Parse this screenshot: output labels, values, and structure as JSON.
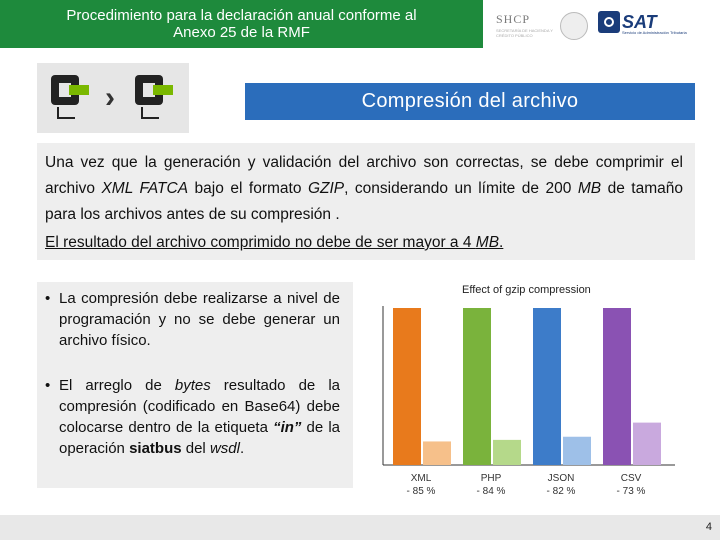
{
  "header": {
    "title_line1": "Procedimiento para la declaración anual conforme al",
    "title_line2": "Anexo 25 de la RMF"
  },
  "logos": {
    "shcp_text": "SHCP",
    "shcp_sub": "SECRETARÍA DE HACIENDA Y CRÉDITO PÚBLICO",
    "sat_text": "SAT",
    "sat_sub": "Servicio de Administración Tributaria"
  },
  "icons": {
    "left": "archive-icon",
    "arrow": "chevron-right-icon",
    "right": "compressed-archive-icon",
    "left_tab_color": "#7ab800",
    "right_tab_color": "#7ab800"
  },
  "section_title": "Compresión del archivo",
  "paragraph": {
    "s1": "Una vez que la generación y validación del archivo son correctas, se debe comprimir el archivo ",
    "s2": "XML FATCA",
    "s3": " bajo el formato ",
    "s4": "GZIP",
    "s5": ", considerando un límite de 200 ",
    "s6": "MB",
    "s7": " de tamaño para los archivos antes de su compresión .",
    "u1": "El resultado del archivo comprimido no debe de ser mayor a 4 ",
    "u2": "MB",
    "u3": "."
  },
  "bullets": {
    "dot": "•",
    "b1": "La compresión debe realizarse a nivel de programación y no se debe generar un archivo físico.",
    "b2a": "El arreglo de ",
    "b2b": "bytes",
    "b2c": " resultado de la compresión (codificado en Base64) debe colocarse dentro de la etiqueta ",
    "b2d": "“in”",
    "b2e": " de la operación ",
    "b2f": "siatbus",
    "b2g": " del ",
    "b2h": "wsdl",
    "b2i": "."
  },
  "chart_data": {
    "type": "bar",
    "title": "Effect of gzip compression",
    "categories": [
      "XML",
      "PHP",
      "JSON",
      "CSV"
    ],
    "series": [
      {
        "original": [
          100,
          100,
          100,
          100
        ],
        "compressed": [
          15,
          16,
          18,
          27
        ]
      }
    ],
    "labels": [
      "- 85 %",
      "- 84 %",
      "- 82 %",
      "- 73 %"
    ],
    "colors": {
      "original": [
        "#e87a1c",
        "#7ab33c",
        "#3d7cc9",
        "#8a52b3"
      ],
      "compressed": [
        "#f6c08a",
        "#b5d98a",
        "#9ec0e8",
        "#c9a9de"
      ]
    },
    "ylim": [
      0,
      110
    ]
  },
  "footer": {
    "page": "4"
  }
}
